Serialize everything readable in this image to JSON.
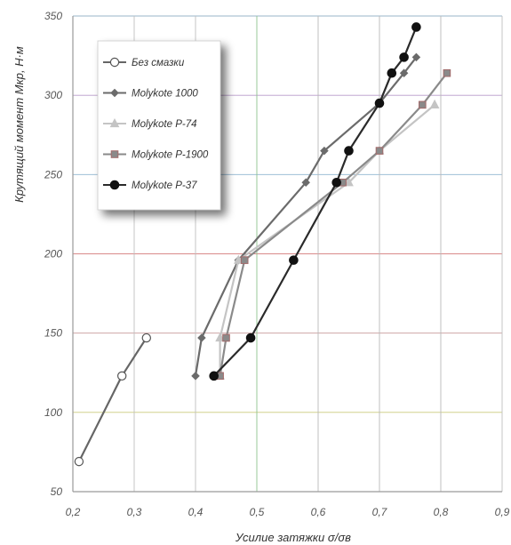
{
  "chart_data": {
    "type": "line",
    "xlabel": "Усилие затяжки σ/σв",
    "ylabel": "Крутящий момент Мкр, Н·м",
    "xlim": [
      0.2,
      0.9
    ],
    "ylim": [
      50,
      350
    ],
    "xticks": [
      "0,2",
      "0,3",
      "0,4",
      "0,5",
      "0,6",
      "0,7",
      "0,8",
      "0,9"
    ],
    "yticks": [
      "50",
      "100",
      "150",
      "200",
      "250",
      "300",
      "350"
    ],
    "grid": true,
    "legend_position": "top-left",
    "series": [
      {
        "name": "Без смазки",
        "color": "#666666",
        "marker": "open-circle",
        "x": [
          0.21,
          0.28,
          0.32
        ],
        "y": [
          69,
          123,
          147
        ]
      },
      {
        "name": "Molykote 1000",
        "color": "#6b6b6b",
        "marker": "diamond",
        "x": [
          0.4,
          0.41,
          0.47,
          0.58,
          0.61,
          0.7,
          0.74,
          0.76
        ],
        "y": [
          123,
          147,
          196,
          245,
          265,
          295,
          314,
          324
        ]
      },
      {
        "name": "Molykote P-74",
        "color": "#c4c4c4",
        "marker": "triangle",
        "x": [
          0.44,
          0.44,
          0.47,
          0.65,
          0.7,
          0.79
        ],
        "y": [
          123,
          147,
          196,
          245,
          265,
          294
        ]
      },
      {
        "name": "Molykote P-1900",
        "color": "#8a8a8a",
        "marker": "square",
        "x": [
          0.44,
          0.45,
          0.48,
          0.64,
          0.7,
          0.77,
          0.81
        ],
        "y": [
          123,
          147,
          196,
          245,
          265,
          294,
          314
        ]
      },
      {
        "name": "Molykote P-37",
        "color": "#2a2a2a",
        "marker": "filled-circle",
        "x": [
          0.43,
          0.49,
          0.56,
          0.63,
          0.65,
          0.7,
          0.72,
          0.74,
          0.76
        ],
        "y": [
          123,
          147,
          196,
          245,
          265,
          295,
          314,
          324,
          343
        ]
      }
    ]
  }
}
